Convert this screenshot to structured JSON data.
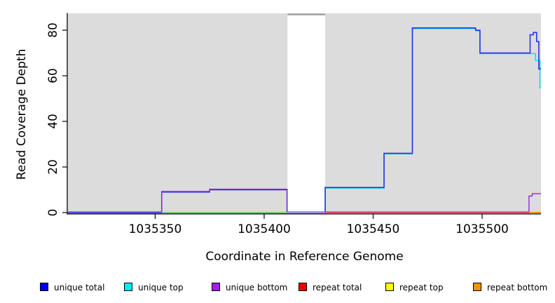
{
  "figure": {
    "xlabel": "Coordinate in Reference Genome",
    "ylabel": "Read Coverage Depth"
  },
  "legend": {
    "position": "bottom",
    "items": [
      {
        "label": "unique total",
        "color": "#0000EE"
      },
      {
        "label": "unique top",
        "color": "#00EEEE"
      },
      {
        "label": "unique bottom",
        "color": "#A020F0"
      },
      {
        "label": "repeat total",
        "color": "#EE0000"
      },
      {
        "label": "repeat top",
        "color": "#FFFF00"
      },
      {
        "label": "repeat bottom",
        "color": "#F59300"
      }
    ]
  },
  "chart_data": {
    "type": "line",
    "subtype": "step",
    "title": "",
    "xlabel": "Coordinate in Reference Genome",
    "ylabel": "Read Coverage Depth",
    "xlim": [
      1035310,
      1035527
    ],
    "ylim": [
      -0.6,
      87.4
    ],
    "x_ticks": [
      1035350,
      1035400,
      1035450,
      1035500
    ],
    "y_ticks": [
      0,
      20,
      40,
      60,
      80
    ],
    "grid": false,
    "legend_position": "bottom",
    "panel_bg": "#DCDCDC",
    "gap_region": {
      "x0": 1035410.7,
      "x1": 1035428,
      "top_value": 86.6,
      "cap_color": "#9C9C9C",
      "fill": "#FFFFFF"
    },
    "series": [
      {
        "key": "unique-total",
        "name": "unique total",
        "color": "#2435EC",
        "width": 1.6,
        "offset": 0,
        "points": [
          [
            1035310,
            0
          ],
          [
            1035353,
            9
          ],
          [
            1035375,
            10
          ],
          [
            1035410.5,
            0
          ],
          [
            1035428,
            11
          ],
          [
            1035455,
            26
          ],
          [
            1035468,
            81
          ],
          [
            1035497,
            80
          ],
          [
            1035499,
            70
          ],
          [
            1035522,
            78
          ],
          [
            1035523.5,
            79
          ],
          [
            1035525,
            75
          ],
          [
            1035526,
            63
          ]
        ]
      },
      {
        "key": "unique-top",
        "name": "unique top",
        "color": "#00DCE8",
        "width": 1.4,
        "offset": 0.9,
        "points": [
          [
            1035310,
            0
          ],
          [
            1035428,
            11
          ],
          [
            1035455,
            26
          ],
          [
            1035468,
            81
          ],
          [
            1035497,
            80
          ],
          [
            1035499,
            70
          ],
          [
            1035524.5,
            67
          ],
          [
            1035526.5,
            55
          ]
        ]
      },
      {
        "key": "unique-bottom",
        "name": "unique bottom",
        "color": "#8B2BE2",
        "width": 1.4,
        "offset": -0.9,
        "points": [
          [
            1035310,
            0
          ],
          [
            1035353,
            9
          ],
          [
            1035375,
            10
          ],
          [
            1035410.5,
            0
          ],
          [
            1035521.5,
            7
          ],
          [
            1035523,
            8
          ]
        ]
      },
      {
        "key": "repeat-total",
        "name": "repeat total",
        "color": "#EE0000",
        "width": 1.2,
        "offset": 0.4,
        "points": [
          [
            1035310,
            0
          ]
        ]
      },
      {
        "key": "repeat-top",
        "name": "repeat top",
        "color": "#FFFF00",
        "width": 1.2,
        "offset": 0.4,
        "points": [
          [
            1035310,
            0
          ]
        ]
      },
      {
        "key": "repeat-bottom",
        "name": "repeat bottom",
        "color": "#FFA500",
        "width": 1.2,
        "offset": 0.4,
        "points": [
          [
            1035310,
            0
          ]
        ]
      }
    ],
    "baseline_segments": [
      {
        "x0": 1035310,
        "x1": 1035353,
        "color": "#5A49E8",
        "note": "unique total + unique bottom at 0"
      },
      {
        "x0": 1035353,
        "x1": 1035410.5,
        "color": "#7CC87C",
        "note": "unique top over repeat top at 0"
      },
      {
        "x0": 1035410.5,
        "x1": 1035428,
        "color": "#A08FE8",
        "note": "unique lines at 0 inside gap"
      },
      {
        "x0": 1035428,
        "x1": 1035521.5,
        "color": "#DC4E72",
        "note": "repeat total at 0"
      },
      {
        "x0": 1035521.5,
        "x1": 1035527,
        "color": "#FB9300",
        "note": "repeat bottom at 0"
      }
    ]
  }
}
